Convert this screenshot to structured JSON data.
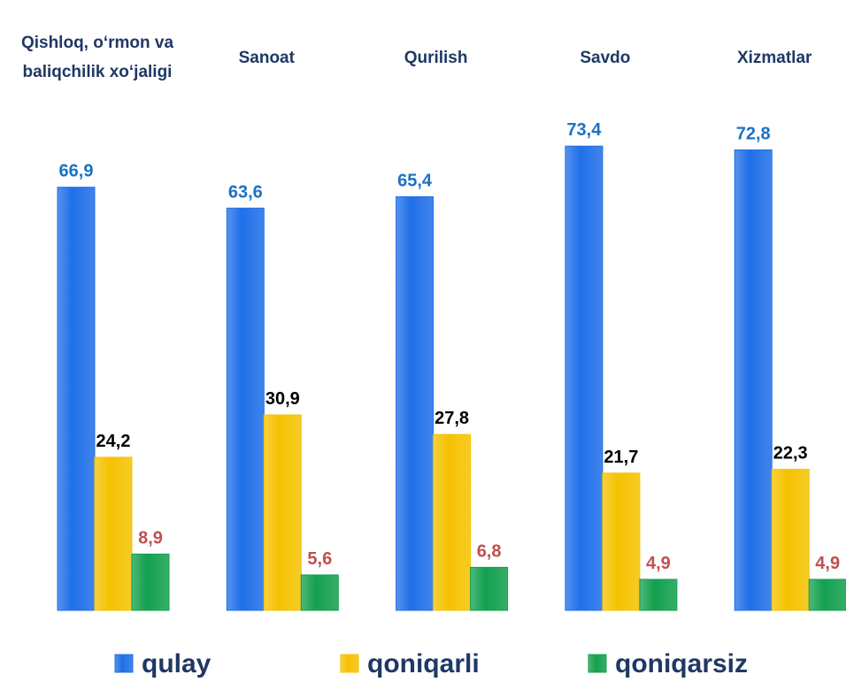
{
  "chart_data": {
    "type": "bar",
    "categories": [
      "Qishloq, o‘rmon va baliqchilik xo‘jaligi",
      "Sanoat",
      "Qurilish",
      "Savdo",
      "Xizmatlar"
    ],
    "series": [
      {
        "name": "qulay",
        "color": "#1f6fe8",
        "label_color": "#1a72c4",
        "values": [
          66.9,
          63.6,
          65.4,
          73.4,
          72.8
        ],
        "value_labels": [
          "66,9",
          "63,6",
          "65,4",
          "73,4",
          "72,8"
        ]
      },
      {
        "name": "qoniqarli",
        "color": "#f5c200",
        "label_color": "#000000",
        "values": [
          24.2,
          30.9,
          27.8,
          21.7,
          22.3
        ],
        "value_labels": [
          "24,2",
          "30,9",
          "27,8",
          "21,7",
          "22,3"
        ]
      },
      {
        "name": "qoniqarsiz",
        "color": "#13a04e",
        "label_color": "#c0504d",
        "values": [
          8.9,
          5.6,
          6.8,
          4.9,
          4.9
        ],
        "value_labels": [
          "8,9",
          "5,6",
          "6,8",
          "4,9",
          "4,9"
        ]
      }
    ],
    "ylim": [
      0,
      80
    ],
    "legend": "bottom"
  }
}
